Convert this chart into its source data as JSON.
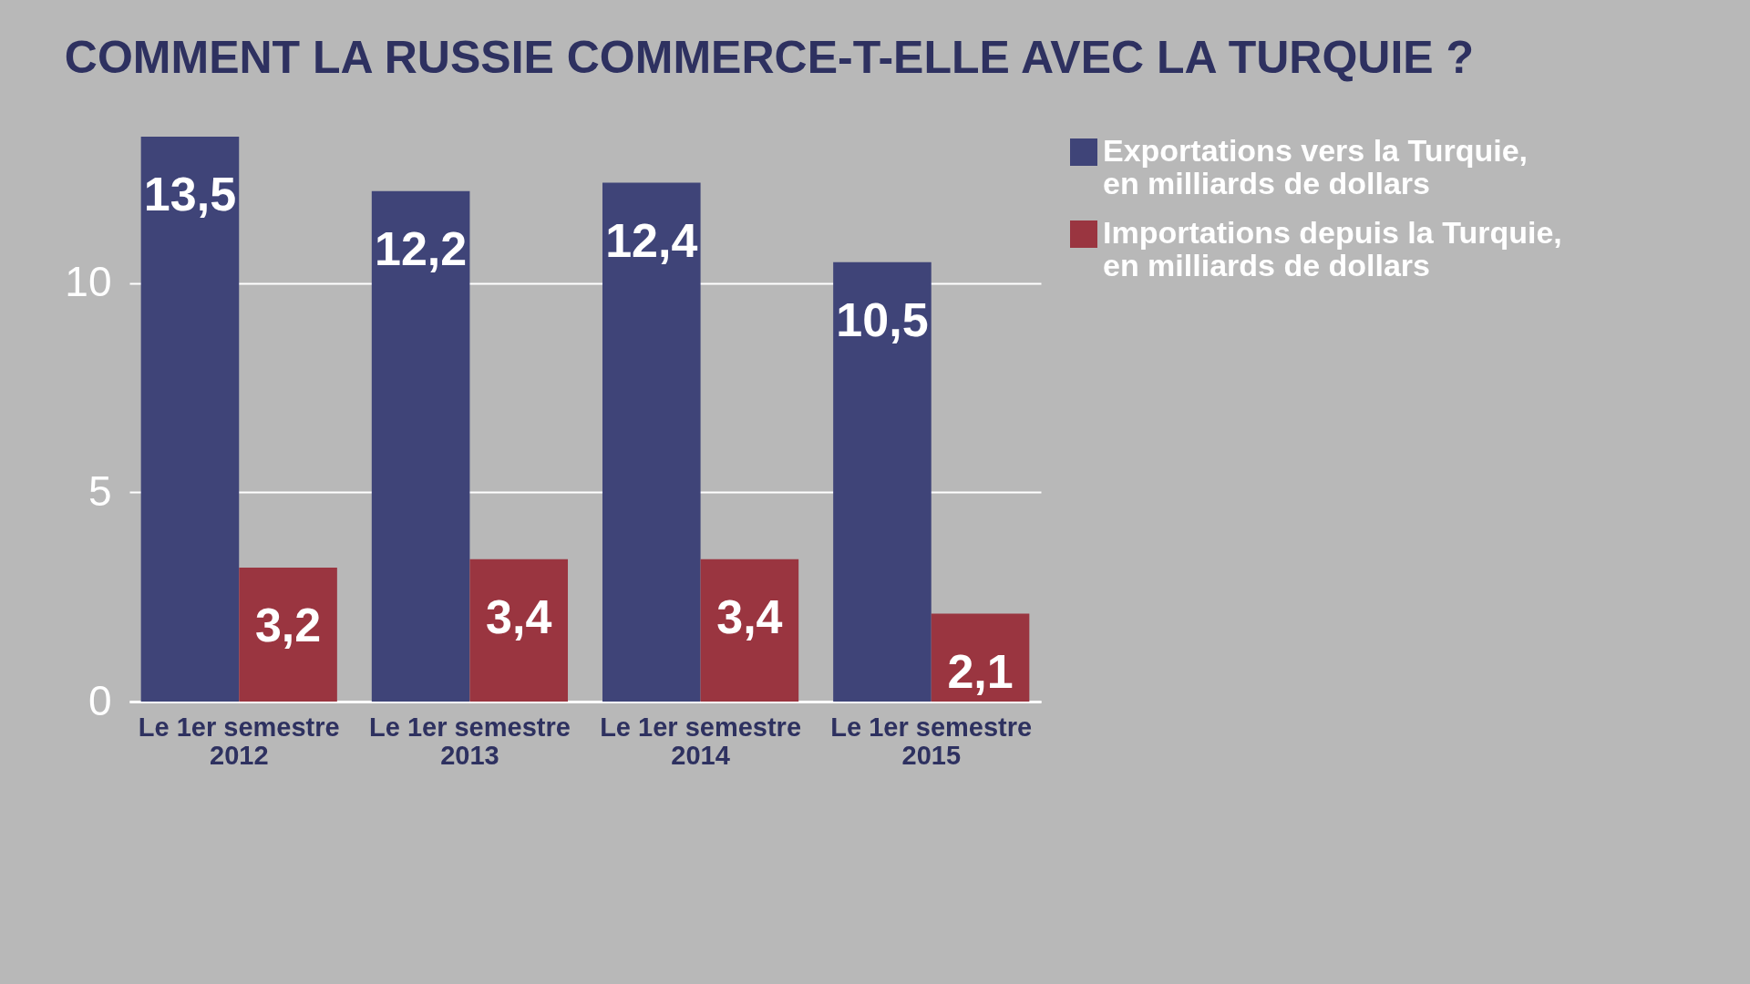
{
  "chart_data": {
    "type": "bar",
    "title": "COMMENT LA RUSSIE COMMERCE-T-ELLE AVEC LA TURQUIE ?",
    "categories": [
      "Le 1er semestre\n2012",
      "Le 1er semestre\n2013",
      "Le 1er semestre\n2014",
      "Le 1er semestre\n2015"
    ],
    "series": [
      {
        "name": "Exportations vers la Turquie, en milliards de dollars",
        "color": "#3f4478",
        "values": [
          13.5,
          12.2,
          12.4,
          10.5
        ],
        "value_labels": [
          "13,5",
          "12,2",
          "12,4",
          "10,5"
        ]
      },
      {
        "name": "Importations depuis la Turquie, en milliards de dollars",
        "color": "#9a3540",
        "values": [
          3.2,
          3.4,
          3.4,
          2.1
        ],
        "value_labels": [
          "3,2",
          "3,4",
          "3,4",
          "2,1"
        ]
      }
    ],
    "ylim": [
      0,
      13.5
    ],
    "yticks": [
      0,
      5,
      10
    ],
    "grid": "y",
    "legend": "top right"
  }
}
